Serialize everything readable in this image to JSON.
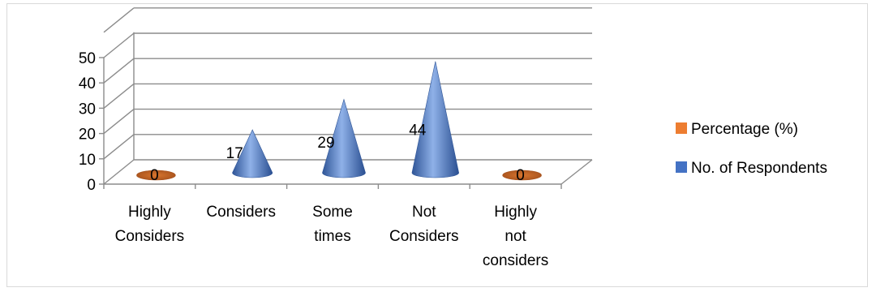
{
  "chart_data": {
    "type": "bar",
    "title": "",
    "categories": [
      [
        "Highly",
        "Considers"
      ],
      [
        "Considers"
      ],
      [
        "Some",
        "times"
      ],
      [
        "Not",
        "Considers"
      ],
      [
        "Highly",
        "not",
        "considers"
      ]
    ],
    "series": [
      {
        "name": "No. of Respondents",
        "color": "#4472C4",
        "values": [
          0,
          17,
          29,
          44,
          0
        ]
      },
      {
        "name": "Percentage (%)",
        "color": "#ED7D31",
        "values": [
          0,
          0,
          0,
          0,
          0
        ]
      }
    ],
    "yticks": [
      0,
      10,
      20,
      30,
      40,
      50
    ],
    "ylim": [
      0,
      50
    ],
    "grid": true,
    "legend_position": "right",
    "shape": "cone-3d"
  }
}
